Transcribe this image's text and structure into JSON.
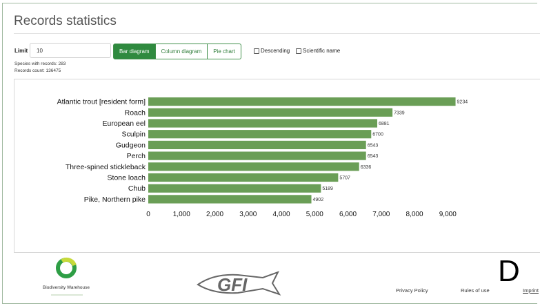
{
  "page": {
    "title": "Records statistics",
    "limit_label": "Limit",
    "limit_value": "10"
  },
  "tabs": [
    {
      "label": "Bar diagram",
      "active": true
    },
    {
      "label": "Column diagram",
      "active": false
    },
    {
      "label": "Pie chart",
      "active": false
    }
  ],
  "options": {
    "descending": {
      "label": "Descending",
      "checked": false
    },
    "scientific": {
      "label": "Scientific name",
      "checked": false
    }
  },
  "info": {
    "species": "Species with records: 283",
    "records": "Records count: 136475"
  },
  "colors": {
    "bar": "#6a9e56",
    "accent": "#2f8a3f"
  },
  "chart_data": {
    "type": "bar",
    "orientation": "horizontal",
    "categories": [
      "Atlantic trout [resident form]",
      "Roach",
      "European eel",
      "Sculpin",
      "Gudgeon",
      "Perch",
      "Three-spined stickleback",
      "Stone loach",
      "Chub",
      "Pike, Northern pike"
    ],
    "values": [
      9234,
      7339,
      6881,
      6700,
      6543,
      6543,
      6336,
      5707,
      5189,
      4902
    ],
    "value_labels": [
      "9234",
      "7339",
      "6881",
      "6700",
      "6543",
      "6543",
      "6336",
      "5707",
      "5189",
      "4902"
    ],
    "xlim": [
      0,
      9500
    ],
    "ticks": [
      0,
      1000,
      2000,
      3000,
      4000,
      5000,
      6000,
      7000,
      8000,
      9000
    ],
    "tick_labels": [
      "0",
      "1,000",
      "2,000",
      "3,000",
      "4,000",
      "5,000",
      "6,000",
      "7,000",
      "8,000",
      "9,000"
    ],
    "grid": false
  },
  "footer": {
    "bw_logo_text": "Biodiversity Warehouse",
    "gfi_logo_text": "GFI",
    "links": [
      "Privacy Policy",
      "Rules of use",
      "Imprint"
    ],
    "letter": "D"
  }
}
